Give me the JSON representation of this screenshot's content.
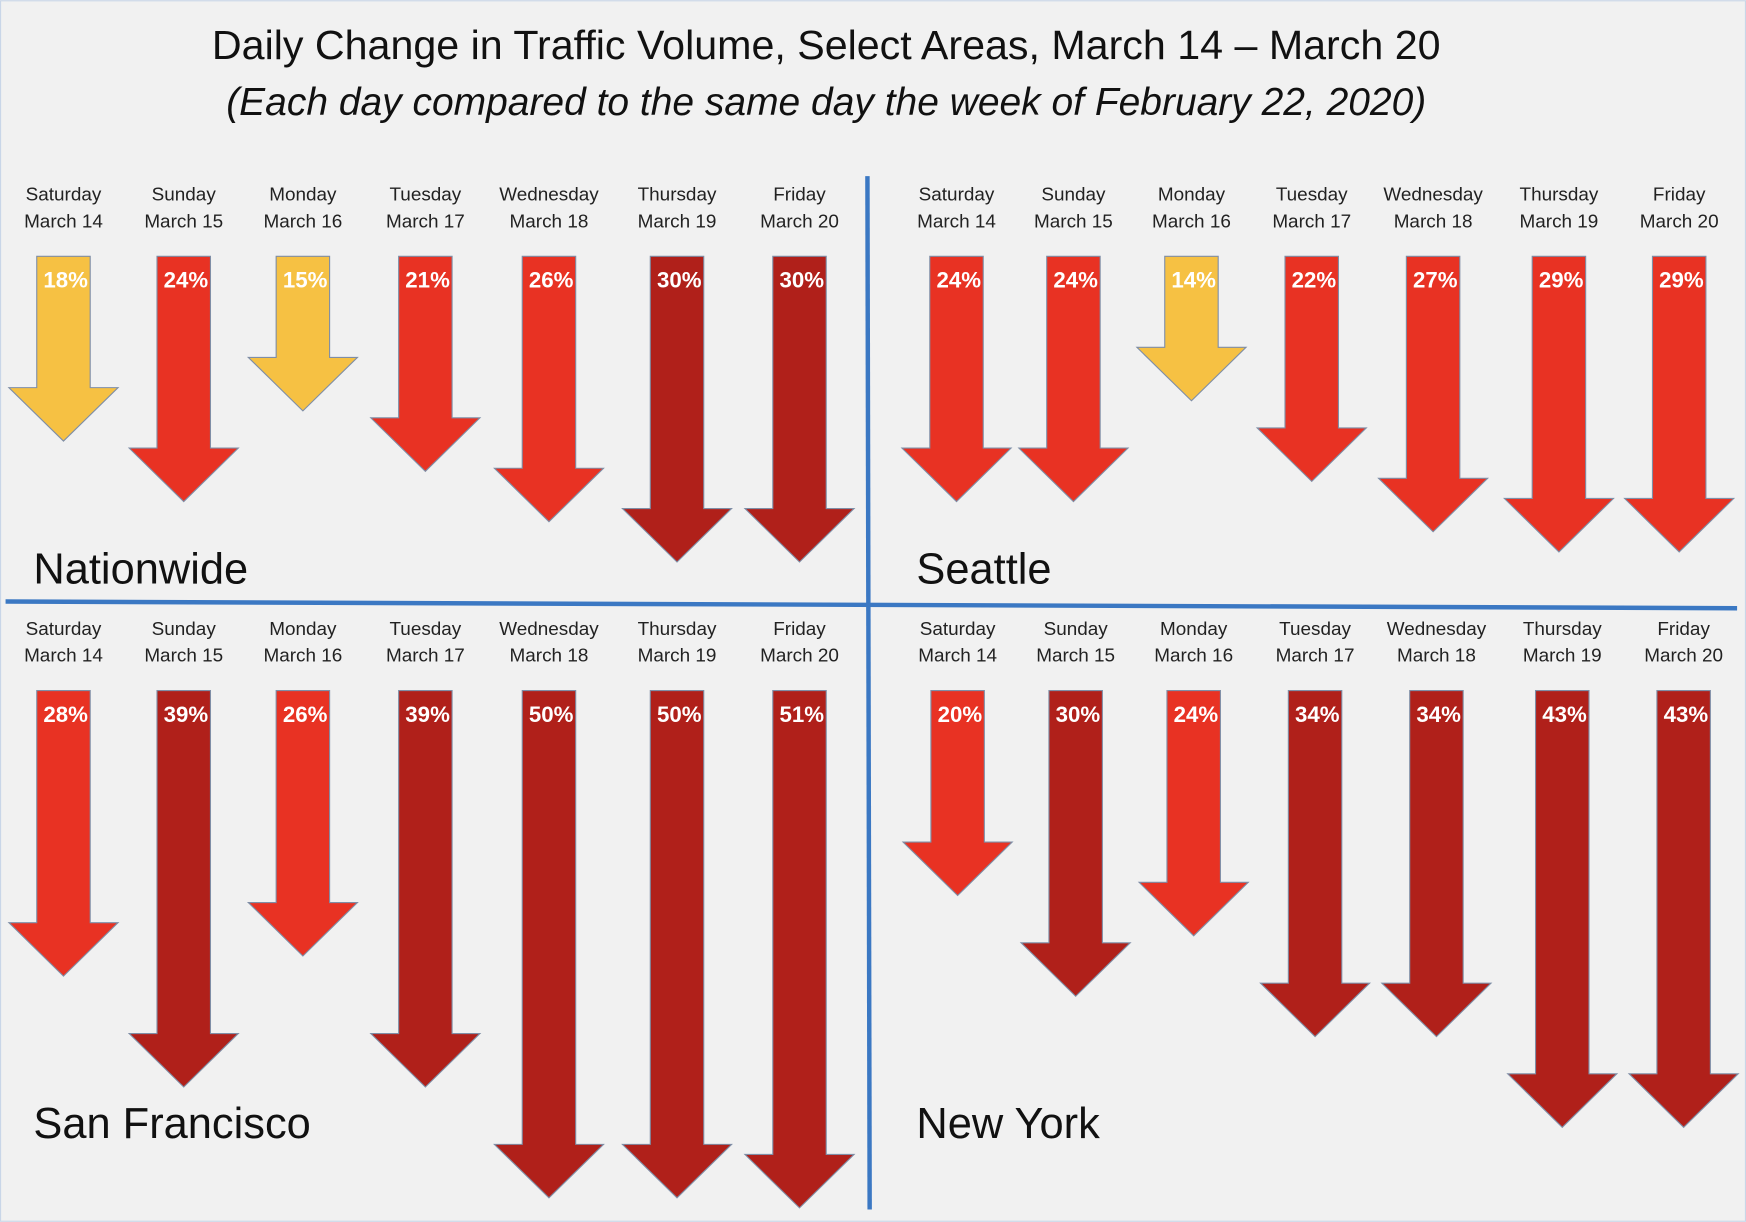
{
  "chart_data": {
    "type": "bar",
    "title": "Daily Change in Traffic Volume, Select Areas, March 14 – March 20",
    "subtitle": "(Each day compared to the same day the week of February 22, 2020)",
    "direction": "down",
    "categories": [
      {
        "day": "Saturday",
        "date": "March 14"
      },
      {
        "day": "Sunday",
        "date": "March 15"
      },
      {
        "day": "Monday",
        "date": "March 16"
      },
      {
        "day": "Tuesday",
        "date": "March 17"
      },
      {
        "day": "Wednesday",
        "date": "March 18"
      },
      {
        "day": "Thursday",
        "date": "March 19"
      },
      {
        "day": "Friday",
        "date": "March 20"
      }
    ],
    "panels": [
      {
        "name": "Nationwide",
        "values": [
          18,
          24,
          15,
          21,
          26,
          30,
          30
        ],
        "labels": [
          "18%",
          "24%",
          "15%",
          "21%",
          "26%",
          "30%",
          "30%"
        ]
      },
      {
        "name": "Seattle",
        "values": [
          24,
          24,
          14,
          22,
          27,
          29,
          29
        ],
        "labels": [
          "24%",
          "24%",
          "14%",
          "22%",
          "27%",
          "29%",
          "29%"
        ]
      },
      {
        "name": "San Francisco",
        "values": [
          28,
          39,
          26,
          39,
          50,
          50,
          51
        ],
        "labels": [
          "28%",
          "39%",
          "26%",
          "39%",
          "50%",
          "50%",
          "51%"
        ]
      },
      {
        "name": "New York",
        "values": [
          20,
          30,
          24,
          34,
          34,
          43,
          43
        ],
        "labels": [
          "20%",
          "30%",
          "24%",
          "34%",
          "34%",
          "43%",
          "43%"
        ]
      }
    ],
    "color_scale": [
      {
        "below": 20,
        "color": "#f6c143"
      },
      {
        "below": 30,
        "color": "#e83223"
      },
      {
        "below": 101,
        "color": "#b0201a"
      }
    ],
    "divider_color": "#3b78c3",
    "background": "#f1f1f1"
  }
}
